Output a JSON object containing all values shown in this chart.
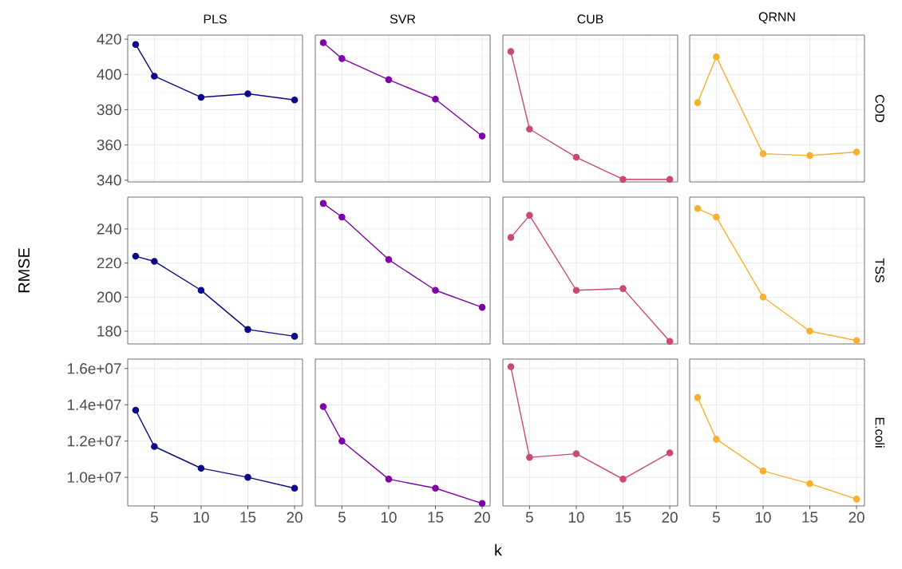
{
  "chart_data": [
    {
      "type": "line",
      "title": "PLS",
      "x": [
        3,
        5,
        10,
        15,
        20
      ],
      "values": [
        417,
        399,
        387,
        389,
        385.5
      ],
      "color": "#0d0887",
      "xlim": [
        2.15,
        20.85
      ],
      "ylim": [
        339,
        422.3
      ],
      "xticks": [
        5,
        10,
        15,
        20
      ],
      "yticks": [
        340,
        360,
        380,
        400,
        420
      ],
      "grid": true,
      "marker": "circle",
      "tick_labels": "y"
    },
    {
      "type": "line",
      "title": "SVR",
      "x": [
        3,
        5,
        10,
        15,
        20
      ],
      "values": [
        418,
        409,
        397,
        386,
        365
      ],
      "color": "#7e03a8",
      "xlim": [
        2.15,
        20.85
      ],
      "ylim": [
        339,
        422.3
      ],
      "xticks": [
        5,
        10,
        15,
        20
      ],
      "yticks": [
        340,
        360,
        380,
        400,
        420
      ],
      "grid": true,
      "marker": "circle",
      "tick_labels": false
    },
    {
      "type": "line",
      "title": "CUB",
      "x": [
        3,
        5,
        10,
        15,
        20
      ],
      "values": [
        413,
        369,
        353,
        340.5,
        340.5
      ],
      "color": "#cc4778",
      "xlim": [
        2.15,
        20.85
      ],
      "ylim": [
        339,
        422.3
      ],
      "xticks": [
        5,
        10,
        15,
        20
      ],
      "yticks": [
        340,
        360,
        380,
        400,
        420
      ],
      "grid": true,
      "marker": "circle",
      "tick_labels": false
    },
    {
      "type": "line",
      "title": "QRNN",
      "y2label": "COD",
      "x": [
        3,
        5,
        10,
        15,
        20
      ],
      "values": [
        384,
        410,
        355,
        354,
        356
      ],
      "color": "#f7b030",
      "xlim": [
        2.15,
        20.85
      ],
      "ylim": [
        339,
        422.3
      ],
      "xticks": [
        5,
        10,
        15,
        20
      ],
      "yticks": [
        340,
        360,
        380,
        400,
        420
      ],
      "grid": true,
      "marker": "circle",
      "tick_labels": false
    },
    {
      "type": "line",
      "ylabel": "RMSE",
      "x": [
        3,
        5,
        10,
        15,
        20
      ],
      "values": [
        224,
        221,
        204,
        181,
        177
      ],
      "color": "#0d0887",
      "xlim": [
        2.15,
        20.85
      ],
      "ylim": [
        172.5,
        258.7
      ],
      "xticks": [
        5,
        10,
        15,
        20
      ],
      "yticks": [
        180,
        200,
        220,
        240
      ],
      "grid": true,
      "marker": "circle",
      "tick_labels": "y"
    },
    {
      "type": "line",
      "x": [
        3,
        5,
        10,
        15,
        20
      ],
      "values": [
        255,
        247,
        222,
        204,
        194
      ],
      "color": "#7e03a8",
      "xlim": [
        2.15,
        20.85
      ],
      "ylim": [
        172.5,
        258.7
      ],
      "xticks": [
        5,
        10,
        15,
        20
      ],
      "yticks": [
        180,
        200,
        220,
        240
      ],
      "grid": true,
      "marker": "circle",
      "tick_labels": false
    },
    {
      "type": "line",
      "x": [
        3,
        5,
        10,
        15,
        20
      ],
      "values": [
        235,
        248,
        204,
        205,
        174
      ],
      "color": "#cc4778",
      "xlim": [
        2.15,
        20.85
      ],
      "ylim": [
        172.5,
        258.7
      ],
      "xticks": [
        5,
        10,
        15,
        20
      ],
      "yticks": [
        180,
        200,
        220,
        240
      ],
      "grid": true,
      "marker": "circle",
      "tick_labels": false
    },
    {
      "type": "line",
      "y2label": "TSS",
      "x": [
        3,
        5,
        10,
        15,
        20
      ],
      "values": [
        252,
        247,
        200,
        180,
        174.5
      ],
      "color": "#f7b030",
      "xlim": [
        2.15,
        20.85
      ],
      "ylim": [
        172.5,
        258.7
      ],
      "xticks": [
        5,
        10,
        15,
        20
      ],
      "yticks": [
        180,
        200,
        220,
        240
      ],
      "grid": true,
      "marker": "circle",
      "tick_labels": false
    },
    {
      "type": "line",
      "x": [
        3,
        5,
        10,
        15,
        20
      ],
      "values": [
        13700000,
        11700000,
        10500000,
        10000000,
        9400000
      ],
      "color": "#0d0887",
      "xlim": [
        2.15,
        20.85
      ],
      "ylim": [
        8420000,
        16520000
      ],
      "xticks": [
        5,
        10,
        15,
        20
      ],
      "yticks": [
        {
          "value": 10000000,
          "label": "1.0e+07"
        },
        {
          "value": 12000000,
          "label": "1.2e+07"
        },
        {
          "value": 14000000,
          "label": "1.4e+07"
        },
        {
          "value": 16000000,
          "label": "1.6e+07"
        }
      ],
      "grid": true,
      "marker": "circle"
    },
    {
      "type": "line",
      "xlabel": "k",
      "x": [
        3,
        5,
        10,
        15,
        20
      ],
      "values": [
        13900000,
        12000000,
        9900000,
        9400000,
        8560000
      ],
      "color": "#7e03a8",
      "xlim": [
        2.15,
        20.85
      ],
      "ylim": [
        8420000,
        16520000
      ],
      "xticks": [
        5,
        10,
        15,
        20
      ],
      "yticks": [
        {
          "value": 10000000,
          "label": null
        },
        {
          "value": 12000000,
          "label": null
        },
        {
          "value": 14000000,
          "label": null
        },
        {
          "value": 16000000,
          "label": null
        }
      ],
      "grid": true,
      "marker": "circle",
      "tick_labels": "x"
    },
    {
      "type": "line",
      "x": [
        3,
        5,
        10,
        15,
        20
      ],
      "values": [
        16100000,
        11100000,
        11300000,
        9900000,
        11350000
      ],
      "color": "#cc4778",
      "xlim": [
        2.15,
        20.85
      ],
      "ylim": [
        8420000,
        16520000
      ],
      "xticks": [
        5,
        10,
        15,
        20
      ],
      "yticks": [
        {
          "value": 10000000,
          "label": null
        },
        {
          "value": 12000000,
          "label": null
        },
        {
          "value": 14000000,
          "label": null
        },
        {
          "value": 16000000,
          "label": null
        }
      ],
      "grid": true,
      "marker": "circle",
      "tick_labels": "x"
    },
    {
      "type": "line",
      "y2label": "E.coli",
      "x": [
        3,
        5,
        10,
        15,
        20
      ],
      "values": [
        14400000,
        12100000,
        10350000,
        9650000,
        8800000
      ],
      "color": "#f7b030",
      "xlim": [
        2.15,
        20.85
      ],
      "ylim": [
        8420000,
        16520000
      ],
      "xticks": [
        5,
        10,
        15,
        20
      ],
      "yticks": [
        {
          "value": 10000000,
          "label": null
        },
        {
          "value": 12000000,
          "label": null
        },
        {
          "value": 14000000,
          "label": null
        },
        {
          "value": 16000000,
          "label": null
        }
      ],
      "grid": true,
      "marker": "circle",
      "tick_labels": "x"
    }
  ]
}
